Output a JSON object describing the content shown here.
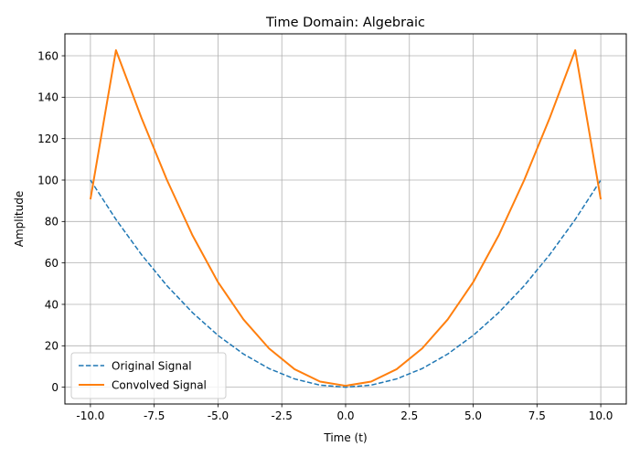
{
  "chart_data": {
    "type": "line",
    "title": "Time Domain: Algebraic",
    "xlabel": "Time (t)",
    "ylabel": "Amplitude",
    "xlim": [
      -11,
      11
    ],
    "ylim": [
      -8.1,
      170.6
    ],
    "xticks": [
      -10.0,
      -7.5,
      -5.0,
      -2.5,
      0.0,
      2.5,
      5.0,
      7.5,
      10.0
    ],
    "xtick_labels": [
      "-10.0",
      "-7.5",
      "-5.0",
      "-2.5",
      "0.0",
      "2.5",
      "5.0",
      "7.5",
      "10.0"
    ],
    "yticks": [
      0,
      20,
      40,
      60,
      80,
      100,
      120,
      140,
      160
    ],
    "ytick_labels": [
      "0",
      "20",
      "40",
      "60",
      "80",
      "100",
      "120",
      "140",
      "160"
    ],
    "grid": true,
    "legend_position": "lower-left",
    "series": [
      {
        "name": "Original Signal",
        "color": "#1f77b4",
        "style": "dashed",
        "x": [
          -10,
          -9,
          -8,
          -7,
          -6,
          -5,
          -4,
          -3,
          -2,
          -1,
          0,
          1,
          2,
          3,
          4,
          5,
          6,
          7,
          8,
          9,
          10
        ],
        "y": [
          100,
          81,
          64,
          49,
          36,
          25,
          16,
          9,
          4,
          1,
          0,
          1,
          4,
          9,
          16,
          25,
          36,
          49,
          64,
          81,
          100
        ]
      },
      {
        "name": "Convolved Signal",
        "color": "#ff7f0e",
        "style": "solid",
        "x": [
          -10,
          -9,
          -8,
          -7,
          -6,
          -5,
          -4,
          -3,
          -2,
          -1,
          0,
          1,
          2,
          3,
          4,
          5,
          6,
          7,
          8,
          9,
          10
        ],
        "y": [
          90.7,
          162.7,
          130,
          100,
          73.3,
          50.7,
          32.7,
          18.7,
          8.7,
          2.7,
          0.7,
          2.7,
          8.7,
          18.7,
          32.7,
          50.7,
          73.3,
          100,
          130,
          162.7,
          90.7
        ]
      }
    ]
  }
}
